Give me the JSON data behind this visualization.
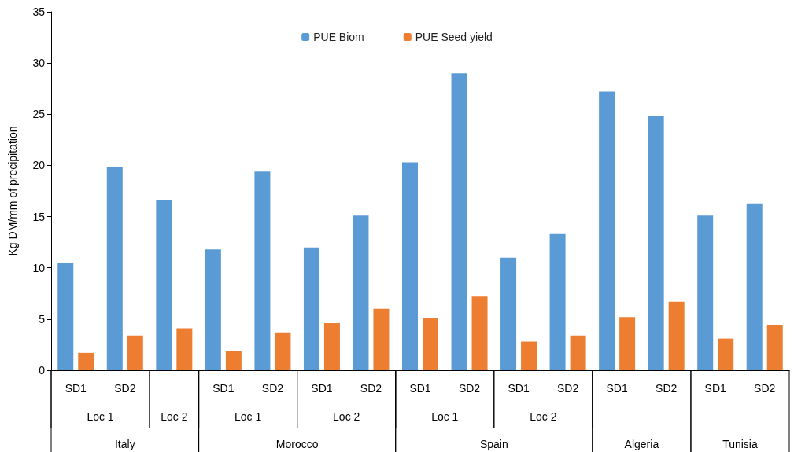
{
  "chart_data": {
    "type": "bar",
    "ylabel": "Kg DM/mm of precipitation",
    "categories": [
      "SD1",
      "SD2",
      null,
      "SD1",
      "SD2",
      "SD1",
      "SD2",
      "SD1",
      "SD2",
      "SD1",
      "SD2",
      "SD1",
      "SD2",
      "SD1",
      "SD2"
    ],
    "series": [
      {
        "name": "PUE Biom",
        "color": "#5b9bd5",
        "values": [
          10.5,
          19.8,
          16.6,
          11.8,
          19.4,
          12.0,
          15.1,
          20.3,
          29.0,
          11.0,
          13.3,
          27.2,
          24.8,
          15.1,
          16.3
        ]
      },
      {
        "name": "PUE Seed yield",
        "color": "#ed7d31",
        "values": [
          1.7,
          3.4,
          4.1,
          1.9,
          3.7,
          4.6,
          6.0,
          5.1,
          7.2,
          2.8,
          3.4,
          5.2,
          6.7,
          3.1,
          4.4
        ]
      }
    ],
    "annotations": [
      "Loc 1",
      "Loc 2",
      "Loc 1",
      "Loc 2",
      "Loc 1",
      "Loc 2",
      "Italy",
      "Morocco",
      "Spain",
      "Algeria",
      "Tunisia"
    ],
    "ylim": [
      0,
      35
    ],
    "yticks": [
      0,
      5,
      10,
      15,
      20,
      25,
      30,
      35
    ],
    "grid": false,
    "legend": "top"
  }
}
